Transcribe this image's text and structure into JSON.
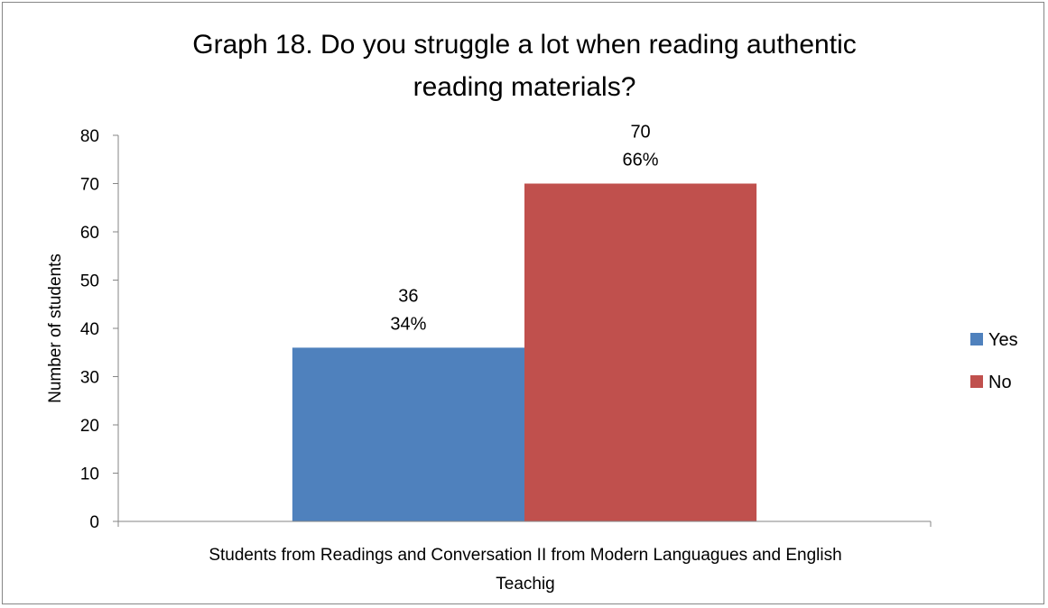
{
  "chart_data": {
    "type": "bar",
    "title_lines": [
      "Graph 18. Do you struggle a lot when reading authentic",
      "reading materials?"
    ],
    "categories": [
      "Students from Readings and Conversation II from Modern Languagues and English Teachig"
    ],
    "xlabel_lines": [
      "Students from Readings and Conversation II from Modern Languagues and English",
      "Teachig"
    ],
    "ylabel": "Number of students",
    "ylim": [
      0,
      80
    ],
    "yticks": [
      0,
      10,
      20,
      30,
      40,
      50,
      60,
      70,
      80
    ],
    "series": [
      {
        "name": "Yes",
        "values": [
          36
        ],
        "percent_label": "34%",
        "color": "#4F81BD"
      },
      {
        "name": "No",
        "values": [
          70
        ],
        "percent_label": "66%",
        "color": "#C0504D"
      }
    ],
    "legend_position": "right",
    "grid": false
  }
}
